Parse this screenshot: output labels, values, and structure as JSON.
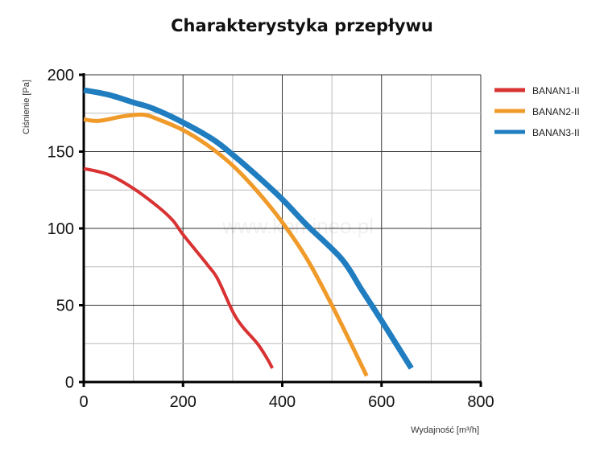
{
  "chart_data": {
    "type": "line",
    "title": "Charakterystyka przepływu",
    "xlabel": "Wydajność [m³/h]",
    "ylabel": "Ciśnienie [Pa]",
    "xlim": [
      0,
      800
    ],
    "ylim": [
      0,
      200
    ],
    "xticks": [
      0,
      200,
      400,
      600,
      800
    ],
    "yticks": [
      0,
      50,
      100,
      150,
      200
    ],
    "grid": true,
    "legend_position": "right",
    "watermark": "www.komineo.pl",
    "series": [
      {
        "name": "BANAN1-II",
        "color": "#d83232",
        "x": [
          0,
          50,
          100,
          150,
          180,
          200,
          250,
          270,
          300,
          320,
          350,
          370,
          380
        ],
        "y": [
          139,
          135,
          126,
          114,
          105,
          96,
          76,
          67,
          46,
          36,
          25,
          15,
          9
        ]
      },
      {
        "name": "BANAN2-II",
        "color": "#f09a2a",
        "x": [
          0,
          30,
          80,
          120,
          150,
          200,
          250,
          300,
          350,
          400,
          450,
          500,
          540,
          570
        ],
        "y": [
          171,
          170,
          173,
          174,
          171,
          164,
          154,
          141,
          124,
          104,
          80,
          50,
          24,
          4
        ]
      },
      {
        "name": "BANAN3-II",
        "color": "#1f7dc0",
        "x": [
          0,
          50,
          100,
          140,
          200,
          260,
          300,
          350,
          400,
          450,
          520,
          560,
          600,
          660
        ],
        "y": [
          190,
          187,
          182,
          178,
          169,
          158,
          148,
          134,
          119,
          102,
          80,
          60,
          40,
          9
        ]
      }
    ]
  }
}
